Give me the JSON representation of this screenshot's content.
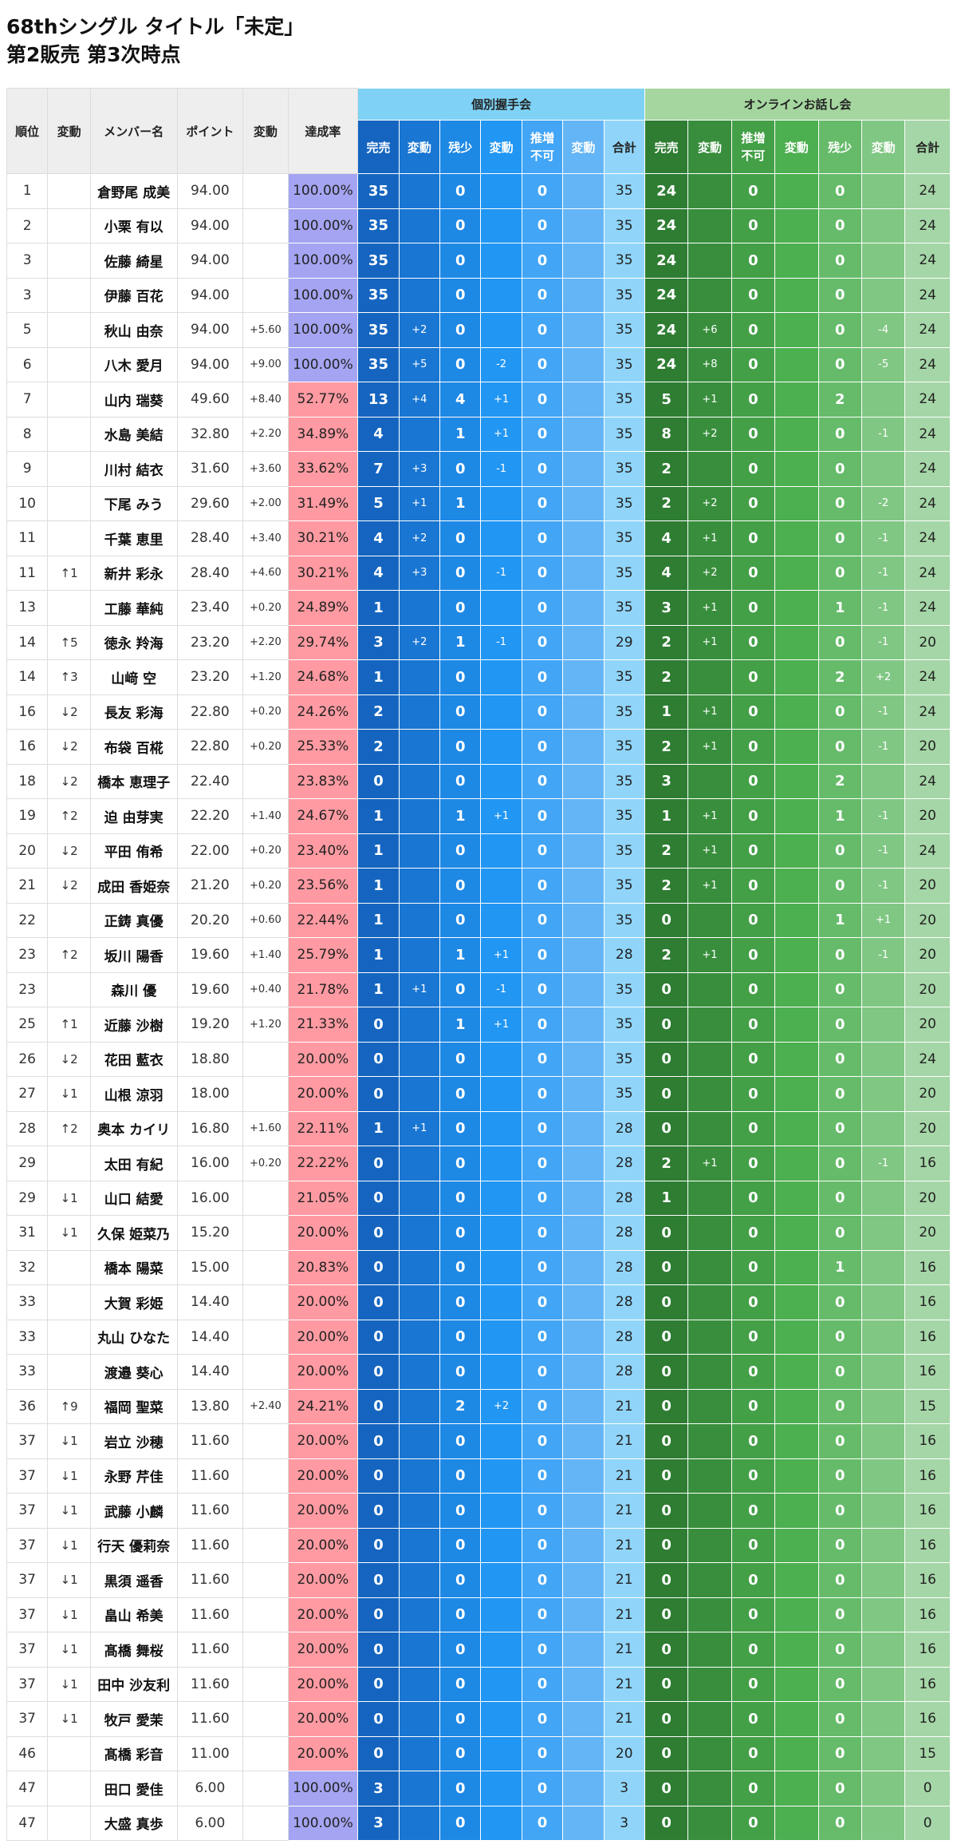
{
  "title": "68thシングル タイトル「未定」",
  "subtitle": "第2販売 第3次時点",
  "header": {
    "rank": "順位",
    "rank_change": "変動",
    "member": "メンバー名",
    "points": "ポイント",
    "points_change": "変動",
    "rate": "達成率",
    "individual": "個別握手会",
    "online": "オンラインお話し会",
    "sold_out": "完売",
    "change": "変動",
    "few_left": "残少",
    "not_available": "推増不可",
    "total": "合計"
  },
  "colors": {
    "rate_full": "#a4a4f2",
    "rate_mid": "#ff9aa2",
    "ind": [
      "#1565c0",
      "#1976d2",
      "#1e88e5",
      "#2196f3",
      "#42a5f5",
      "#64b5f6",
      "#90d5f9"
    ],
    "onl": [
      "#2e7d32",
      "#388e3c",
      "#43a047",
      "#4caf50",
      "#66bb6a",
      "#81c784",
      "#a5d6a7"
    ]
  },
  "rows": [
    {
      "r": "1",
      "rc": "",
      "n": "倉野尾 成美",
      "p": "94.00",
      "pc": "",
      "rate": "100.00%",
      "rate_full": true,
      "i": [
        "35",
        "",
        "0",
        "",
        "0",
        "",
        "35"
      ],
      "o": [
        "24",
        "",
        "0",
        "",
        "0",
        "",
        "24"
      ]
    },
    {
      "r": "2",
      "rc": "",
      "n": "小栗 有以",
      "p": "94.00",
      "pc": "",
      "rate": "100.00%",
      "rate_full": true,
      "i": [
        "35",
        "",
        "0",
        "",
        "0",
        "",
        "35"
      ],
      "o": [
        "24",
        "",
        "0",
        "",
        "0",
        "",
        "24"
      ]
    },
    {
      "r": "3",
      "rc": "",
      "n": "佐藤 綺星",
      "p": "94.00",
      "pc": "",
      "rate": "100.00%",
      "rate_full": true,
      "i": [
        "35",
        "",
        "0",
        "",
        "0",
        "",
        "35"
      ],
      "o": [
        "24",
        "",
        "0",
        "",
        "0",
        "",
        "24"
      ]
    },
    {
      "r": "3",
      "rc": "",
      "n": "伊藤 百花",
      "p": "94.00",
      "pc": "",
      "rate": "100.00%",
      "rate_full": true,
      "i": [
        "35",
        "",
        "0",
        "",
        "0",
        "",
        "35"
      ],
      "o": [
        "24",
        "",
        "0",
        "",
        "0",
        "",
        "24"
      ]
    },
    {
      "r": "5",
      "rc": "",
      "n": "秋山 由奈",
      "p": "94.00",
      "pc": "+5.60",
      "rate": "100.00%",
      "rate_full": true,
      "i": [
        "35",
        "+2",
        "0",
        "",
        "0",
        "",
        "35"
      ],
      "o": [
        "24",
        "+6",
        "0",
        "",
        "0",
        "-4",
        "24"
      ]
    },
    {
      "r": "6",
      "rc": "",
      "n": "八木 愛月",
      "p": "94.00",
      "pc": "+9.00",
      "rate": "100.00%",
      "rate_full": true,
      "i": [
        "35",
        "+5",
        "0",
        "-2",
        "0",
        "",
        "35"
      ],
      "o": [
        "24",
        "+8",
        "0",
        "",
        "0",
        "-5",
        "24"
      ]
    },
    {
      "r": "7",
      "rc": "",
      "n": "山内 瑞葵",
      "p": "49.60",
      "pc": "+8.40",
      "rate": "52.77%",
      "i": [
        "13",
        "+4",
        "4",
        "+1",
        "0",
        "",
        "35"
      ],
      "o": [
        "5",
        "+1",
        "0",
        "",
        "2",
        "",
        "24"
      ]
    },
    {
      "r": "8",
      "rc": "",
      "n": "水島 美結",
      "p": "32.80",
      "pc": "+2.20",
      "rate": "34.89%",
      "i": [
        "4",
        "",
        "1",
        "+1",
        "0",
        "",
        "35"
      ],
      "o": [
        "8",
        "+2",
        "0",
        "",
        "0",
        "-1",
        "24"
      ]
    },
    {
      "r": "9",
      "rc": "",
      "n": "川村 結衣",
      "p": "31.60",
      "pc": "+3.60",
      "rate": "33.62%",
      "i": [
        "7",
        "+3",
        "0",
        "-1",
        "0",
        "",
        "35"
      ],
      "o": [
        "2",
        "",
        "0",
        "",
        "0",
        "",
        "24"
      ]
    },
    {
      "r": "10",
      "rc": "",
      "n": "下尾 みう",
      "p": "29.60",
      "pc": "+2.00",
      "rate": "31.49%",
      "i": [
        "5",
        "+1",
        "1",
        "",
        "0",
        "",
        "35"
      ],
      "o": [
        "2",
        "+2",
        "0",
        "",
        "0",
        "-2",
        "24"
      ]
    },
    {
      "r": "11",
      "rc": "",
      "n": "千葉 恵里",
      "p": "28.40",
      "pc": "+3.40",
      "rate": "30.21%",
      "i": [
        "4",
        "+2",
        "0",
        "",
        "0",
        "",
        "35"
      ],
      "o": [
        "4",
        "+1",
        "0",
        "",
        "0",
        "-1",
        "24"
      ]
    },
    {
      "r": "11",
      "rc": "↑1",
      "n": "新井 彩永",
      "p": "28.40",
      "pc": "+4.60",
      "rate": "30.21%",
      "i": [
        "4",
        "+3",
        "0",
        "-1",
        "0",
        "",
        "35"
      ],
      "o": [
        "4",
        "+2",
        "0",
        "",
        "0",
        "-1",
        "24"
      ]
    },
    {
      "r": "13",
      "rc": "",
      "n": "工藤 華純",
      "p": "23.40",
      "pc": "+0.20",
      "rate": "24.89%",
      "i": [
        "1",
        "",
        "0",
        "",
        "0",
        "",
        "35"
      ],
      "o": [
        "3",
        "+1",
        "0",
        "",
        "1",
        "-1",
        "24"
      ]
    },
    {
      "r": "14",
      "rc": "↑5",
      "n": "徳永 羚海",
      "p": "23.20",
      "pc": "+2.20",
      "rate": "29.74%",
      "i": [
        "3",
        "+2",
        "1",
        "-1",
        "0",
        "",
        "29"
      ],
      "o": [
        "2",
        "+1",
        "0",
        "",
        "0",
        "-1",
        "20"
      ]
    },
    {
      "r": "14",
      "rc": "↑3",
      "n": "山﨑 空",
      "p": "23.20",
      "pc": "+1.20",
      "rate": "24.68%",
      "i": [
        "1",
        "",
        "0",
        "",
        "0",
        "",
        "35"
      ],
      "o": [
        "2",
        "",
        "0",
        "",
        "2",
        "+2",
        "24"
      ]
    },
    {
      "r": "16",
      "rc": "↓2",
      "n": "長友 彩海",
      "p": "22.80",
      "pc": "+0.20",
      "rate": "24.26%",
      "i": [
        "2",
        "",
        "0",
        "",
        "0",
        "",
        "35"
      ],
      "o": [
        "1",
        "+1",
        "0",
        "",
        "0",
        "-1",
        "24"
      ]
    },
    {
      "r": "16",
      "rc": "↓2",
      "n": "布袋 百椛",
      "p": "22.80",
      "pc": "+0.20",
      "rate": "25.33%",
      "i": [
        "2",
        "",
        "0",
        "",
        "0",
        "",
        "35"
      ],
      "o": [
        "2",
        "+1",
        "0",
        "",
        "0",
        "-1",
        "20"
      ]
    },
    {
      "r": "18",
      "rc": "↓2",
      "n": "橋本 恵理子",
      "p": "22.40",
      "pc": "",
      "rate": "23.83%",
      "i": [
        "0",
        "",
        "0",
        "",
        "0",
        "",
        "35"
      ],
      "o": [
        "3",
        "",
        "0",
        "",
        "2",
        "",
        "24"
      ]
    },
    {
      "r": "19",
      "rc": "↑2",
      "n": "迫 由芽実",
      "p": "22.20",
      "pc": "+1.40",
      "rate": "24.67%",
      "i": [
        "1",
        "",
        "1",
        "+1",
        "0",
        "",
        "35"
      ],
      "o": [
        "1",
        "+1",
        "0",
        "",
        "1",
        "-1",
        "20"
      ]
    },
    {
      "r": "20",
      "rc": "↓2",
      "n": "平田 侑希",
      "p": "22.00",
      "pc": "+0.20",
      "rate": "23.40%",
      "i": [
        "1",
        "",
        "0",
        "",
        "0",
        "",
        "35"
      ],
      "o": [
        "2",
        "+1",
        "0",
        "",
        "0",
        "-1",
        "24"
      ]
    },
    {
      "r": "21",
      "rc": "↓2",
      "n": "成田 香姫奈",
      "p": "21.20",
      "pc": "+0.20",
      "rate": "23.56%",
      "i": [
        "1",
        "",
        "0",
        "",
        "0",
        "",
        "35"
      ],
      "o": [
        "2",
        "+1",
        "0",
        "",
        "0",
        "-1",
        "20"
      ]
    },
    {
      "r": "22",
      "rc": "",
      "n": "正鋳 真優",
      "p": "20.20",
      "pc": "+0.60",
      "rate": "22.44%",
      "i": [
        "1",
        "",
        "0",
        "",
        "0",
        "",
        "35"
      ],
      "o": [
        "0",
        "",
        "0",
        "",
        "1",
        "+1",
        "20"
      ]
    },
    {
      "r": "23",
      "rc": "↑2",
      "n": "坂川 陽香",
      "p": "19.60",
      "pc": "+1.40",
      "rate": "25.79%",
      "i": [
        "1",
        "",
        "1",
        "+1",
        "0",
        "",
        "28"
      ],
      "o": [
        "2",
        "+1",
        "0",
        "",
        "0",
        "-1",
        "20"
      ]
    },
    {
      "r": "23",
      "rc": "",
      "n": "森川 優",
      "p": "19.60",
      "pc": "+0.40",
      "rate": "21.78%",
      "i": [
        "1",
        "+1",
        "0",
        "-1",
        "0",
        "",
        "35"
      ],
      "o": [
        "0",
        "",
        "0",
        "",
        "0",
        "",
        "20"
      ]
    },
    {
      "r": "25",
      "rc": "↑1",
      "n": "近藤 沙樹",
      "p": "19.20",
      "pc": "+1.20",
      "rate": "21.33%",
      "i": [
        "0",
        "",
        "1",
        "+1",
        "0",
        "",
        "35"
      ],
      "o": [
        "0",
        "",
        "0",
        "",
        "0",
        "",
        "20"
      ]
    },
    {
      "r": "26",
      "rc": "↓2",
      "n": "花田 藍衣",
      "p": "18.80",
      "pc": "",
      "rate": "20.00%",
      "i": [
        "0",
        "",
        "0",
        "",
        "0",
        "",
        "35"
      ],
      "o": [
        "0",
        "",
        "0",
        "",
        "0",
        "",
        "24"
      ]
    },
    {
      "r": "27",
      "rc": "↓1",
      "n": "山根 涼羽",
      "p": "18.00",
      "pc": "",
      "rate": "20.00%",
      "i": [
        "0",
        "",
        "0",
        "",
        "0",
        "",
        "35"
      ],
      "o": [
        "0",
        "",
        "0",
        "",
        "0",
        "",
        "20"
      ]
    },
    {
      "r": "28",
      "rc": "↑2",
      "n": "奥本 カイリ",
      "p": "16.80",
      "pc": "+1.60",
      "rate": "22.11%",
      "i": [
        "1",
        "+1",
        "0",
        "",
        "0",
        "",
        "28"
      ],
      "o": [
        "0",
        "",
        "0",
        "",
        "0",
        "",
        "20"
      ]
    },
    {
      "r": "29",
      "rc": "",
      "n": "太田 有紀",
      "p": "16.00",
      "pc": "+0.20",
      "rate": "22.22%",
      "i": [
        "0",
        "",
        "0",
        "",
        "0",
        "",
        "28"
      ],
      "o": [
        "2",
        "+1",
        "0",
        "",
        "0",
        "-1",
        "16"
      ]
    },
    {
      "r": "29",
      "rc": "↓1",
      "n": "山口 結愛",
      "p": "16.00",
      "pc": "",
      "rate": "21.05%",
      "i": [
        "0",
        "",
        "0",
        "",
        "0",
        "",
        "28"
      ],
      "o": [
        "1",
        "",
        "0",
        "",
        "0",
        "",
        "20"
      ]
    },
    {
      "r": "31",
      "rc": "↓1",
      "n": "久保 姫菜乃",
      "p": "15.20",
      "pc": "",
      "rate": "20.00%",
      "i": [
        "0",
        "",
        "0",
        "",
        "0",
        "",
        "28"
      ],
      "o": [
        "0",
        "",
        "0",
        "",
        "0",
        "",
        "20"
      ]
    },
    {
      "r": "32",
      "rc": "",
      "n": "橋本 陽菜",
      "p": "15.00",
      "pc": "",
      "rate": "20.83%",
      "i": [
        "0",
        "",
        "0",
        "",
        "0",
        "",
        "28"
      ],
      "o": [
        "0",
        "",
        "0",
        "",
        "1",
        "",
        "16"
      ]
    },
    {
      "r": "33",
      "rc": "",
      "n": "大賀 彩姫",
      "p": "14.40",
      "pc": "",
      "rate": "20.00%",
      "i": [
        "0",
        "",
        "0",
        "",
        "0",
        "",
        "28"
      ],
      "o": [
        "0",
        "",
        "0",
        "",
        "0",
        "",
        "16"
      ]
    },
    {
      "r": "33",
      "rc": "",
      "n": "丸山 ひなた",
      "p": "14.40",
      "pc": "",
      "rate": "20.00%",
      "i": [
        "0",
        "",
        "0",
        "",
        "0",
        "",
        "28"
      ],
      "o": [
        "0",
        "",
        "0",
        "",
        "0",
        "",
        "16"
      ]
    },
    {
      "r": "33",
      "rc": "",
      "n": "渡邉 葵心",
      "p": "14.40",
      "pc": "",
      "rate": "20.00%",
      "i": [
        "0",
        "",
        "0",
        "",
        "0",
        "",
        "28"
      ],
      "o": [
        "0",
        "",
        "0",
        "",
        "0",
        "",
        "16"
      ]
    },
    {
      "r": "36",
      "rc": "↑9",
      "n": "福岡 聖菜",
      "p": "13.80",
      "pc": "+2.40",
      "rate": "24.21%",
      "i": [
        "0",
        "",
        "2",
        "+2",
        "0",
        "",
        "21"
      ],
      "o": [
        "0",
        "",
        "0",
        "",
        "0",
        "",
        "15"
      ]
    },
    {
      "r": "37",
      "rc": "↓1",
      "n": "岩立 沙穂",
      "p": "11.60",
      "pc": "",
      "rate": "20.00%",
      "i": [
        "0",
        "",
        "0",
        "",
        "0",
        "",
        "21"
      ],
      "o": [
        "0",
        "",
        "0",
        "",
        "0",
        "",
        "16"
      ]
    },
    {
      "r": "37",
      "rc": "↓1",
      "n": "永野 芹佳",
      "p": "11.60",
      "pc": "",
      "rate": "20.00%",
      "i": [
        "0",
        "",
        "0",
        "",
        "0",
        "",
        "21"
      ],
      "o": [
        "0",
        "",
        "0",
        "",
        "0",
        "",
        "16"
      ]
    },
    {
      "r": "37",
      "rc": "↓1",
      "n": "武藤 小麟",
      "p": "11.60",
      "pc": "",
      "rate": "20.00%",
      "i": [
        "0",
        "",
        "0",
        "",
        "0",
        "",
        "21"
      ],
      "o": [
        "0",
        "",
        "0",
        "",
        "0",
        "",
        "16"
      ]
    },
    {
      "r": "37",
      "rc": "↓1",
      "n": "行天 優莉奈",
      "p": "11.60",
      "pc": "",
      "rate": "20.00%",
      "i": [
        "0",
        "",
        "0",
        "",
        "0",
        "",
        "21"
      ],
      "o": [
        "0",
        "",
        "0",
        "",
        "0",
        "",
        "16"
      ]
    },
    {
      "r": "37",
      "rc": "↓1",
      "n": "黒須 遥香",
      "p": "11.60",
      "pc": "",
      "rate": "20.00%",
      "i": [
        "0",
        "",
        "0",
        "",
        "0",
        "",
        "21"
      ],
      "o": [
        "0",
        "",
        "0",
        "",
        "0",
        "",
        "16"
      ]
    },
    {
      "r": "37",
      "rc": "↓1",
      "n": "畠山 希美",
      "p": "11.60",
      "pc": "",
      "rate": "20.00%",
      "i": [
        "0",
        "",
        "0",
        "",
        "0",
        "",
        "21"
      ],
      "o": [
        "0",
        "",
        "0",
        "",
        "0",
        "",
        "16"
      ]
    },
    {
      "r": "37",
      "rc": "↓1",
      "n": "髙橋 舞桜",
      "p": "11.60",
      "pc": "",
      "rate": "20.00%",
      "i": [
        "0",
        "",
        "0",
        "",
        "0",
        "",
        "21"
      ],
      "o": [
        "0",
        "",
        "0",
        "",
        "0",
        "",
        "16"
      ]
    },
    {
      "r": "37",
      "rc": "↓1",
      "n": "田中 沙友利",
      "p": "11.60",
      "pc": "",
      "rate": "20.00%",
      "i": [
        "0",
        "",
        "0",
        "",
        "0",
        "",
        "21"
      ],
      "o": [
        "0",
        "",
        "0",
        "",
        "0",
        "",
        "16"
      ]
    },
    {
      "r": "37",
      "rc": "↓1",
      "n": "牧戸 愛茉",
      "p": "11.60",
      "pc": "",
      "rate": "20.00%",
      "i": [
        "0",
        "",
        "0",
        "",
        "0",
        "",
        "21"
      ],
      "o": [
        "0",
        "",
        "0",
        "",
        "0",
        "",
        "16"
      ]
    },
    {
      "r": "46",
      "rc": "",
      "n": "髙橋 彩音",
      "p": "11.00",
      "pc": "",
      "rate": "20.00%",
      "i": [
        "0",
        "",
        "0",
        "",
        "0",
        "",
        "20"
      ],
      "o": [
        "0",
        "",
        "0",
        "",
        "0",
        "",
        "15"
      ]
    },
    {
      "r": "47",
      "rc": "",
      "n": "田口 愛佳",
      "p": "6.00",
      "pc": "",
      "rate": "100.00%",
      "rate_full": true,
      "i": [
        "3",
        "",
        "0",
        "",
        "0",
        "",
        "3"
      ],
      "o": [
        "0",
        "",
        "0",
        "",
        "0",
        "",
        "0"
      ]
    },
    {
      "r": "47",
      "rc": "",
      "n": "大盛 真歩",
      "p": "6.00",
      "pc": "",
      "rate": "100.00%",
      "rate_full": true,
      "i": [
        "3",
        "",
        "0",
        "",
        "0",
        "",
        "3"
      ],
      "o": [
        "0",
        "",
        "0",
        "",
        "0",
        "",
        "0"
      ]
    }
  ]
}
